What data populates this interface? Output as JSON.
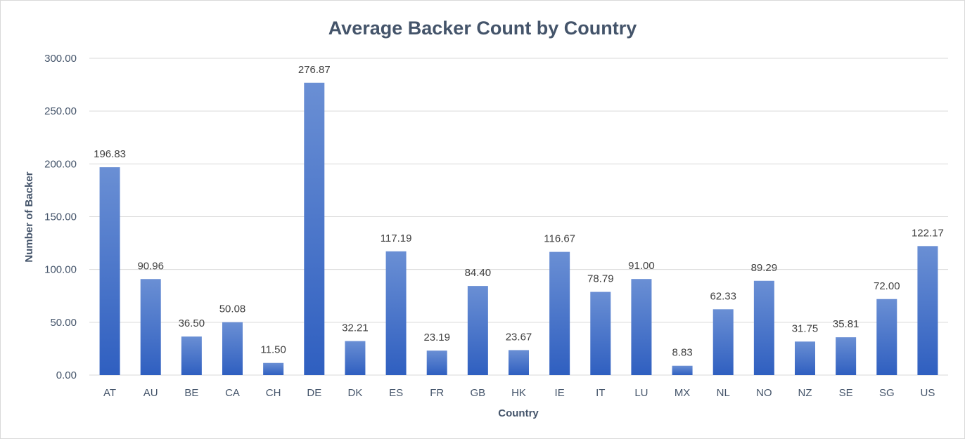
{
  "chart_data": {
    "type": "bar",
    "title": "Average Backer Count by Country",
    "xlabel": "Country",
    "ylabel": "Number of Backer",
    "ylim": [
      0,
      300
    ],
    "yticks": [
      "0.00",
      "50.00",
      "100.00",
      "150.00",
      "200.00",
      "250.00",
      "300.00"
    ],
    "grid": true,
    "legend": "none",
    "categories": [
      "AT",
      "AU",
      "BE",
      "CA",
      "CH",
      "DE",
      "DK",
      "ES",
      "FR",
      "GB",
      "HK",
      "IE",
      "IT",
      "LU",
      "MX",
      "NL",
      "NO",
      "NZ",
      "SE",
      "SG",
      "US"
    ],
    "values": [
      196.83,
      90.96,
      36.5,
      50.08,
      11.5,
      276.87,
      32.21,
      117.19,
      23.19,
      84.4,
      23.67,
      116.67,
      78.79,
      91.0,
      8.83,
      62.33,
      89.29,
      31.75,
      35.81,
      72.0,
      122.17
    ],
    "data_labels": [
      "196.83",
      "90.96",
      "36.50",
      "50.08",
      "11.50",
      "276.87",
      "32.21",
      "117.19",
      "23.19",
      "84.40",
      "23.67",
      "116.67",
      "78.79",
      "91.00",
      "8.83",
      "62.33",
      "89.29",
      "31.75",
      "35.81",
      "72.00",
      "122.17"
    ],
    "colors": {
      "bar_top": "#6a8fd4",
      "bar_bottom": "#2f5fc0",
      "grid": "#d9d9d9",
      "text": "#44546a"
    }
  }
}
